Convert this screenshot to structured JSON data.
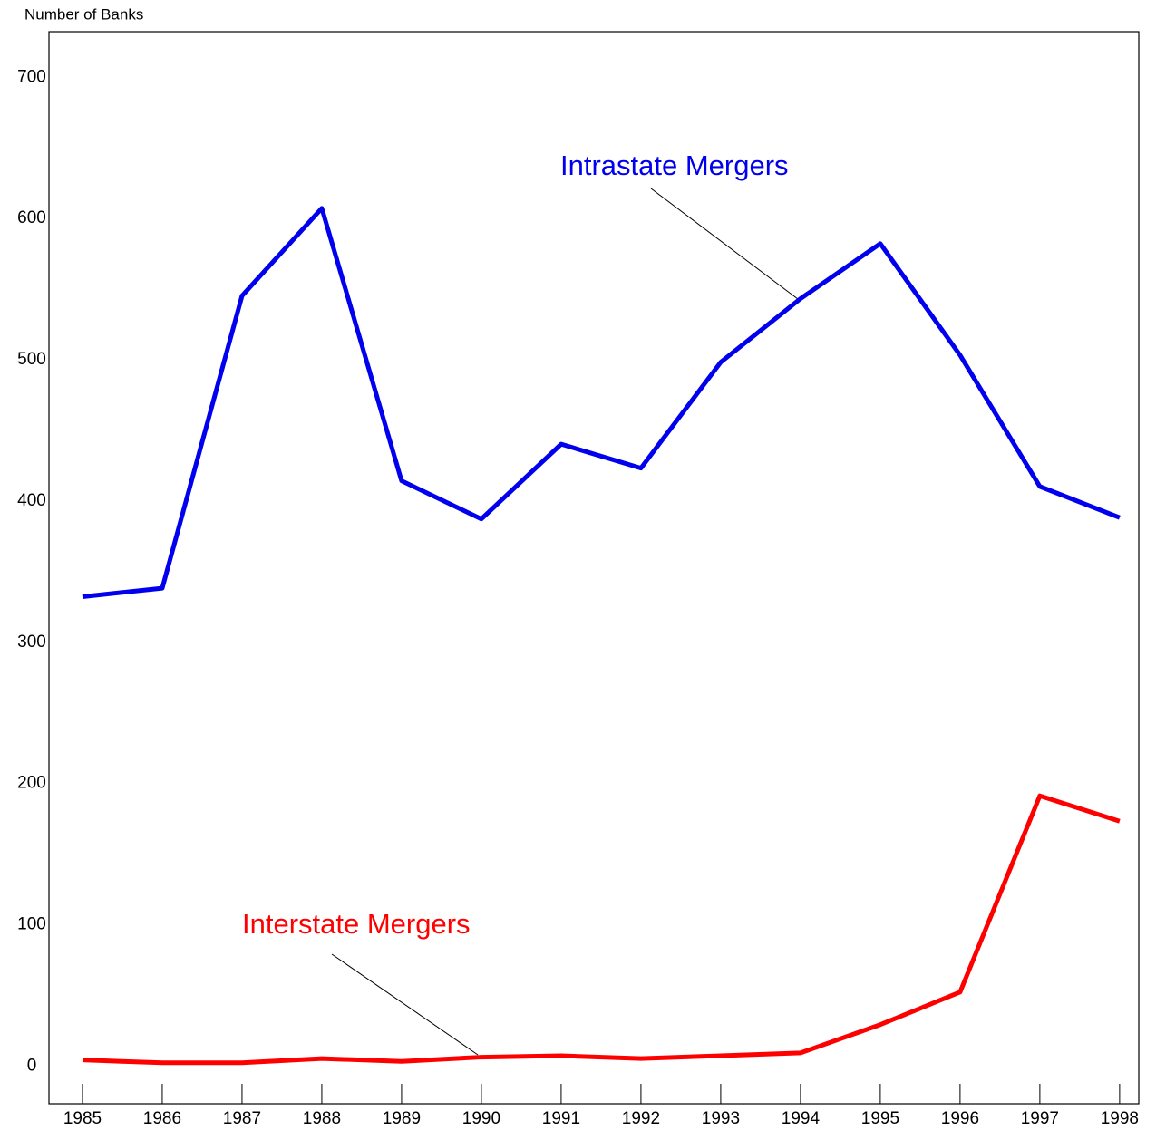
{
  "chart_data": {
    "type": "line",
    "y_label": "Number of Banks",
    "x": [
      1985,
      1986,
      1987,
      1988,
      1989,
      1990,
      1991,
      1992,
      1993,
      1994,
      1995,
      1996,
      1997,
      1998
    ],
    "series": [
      {
        "name": "Intrastate Mergers",
        "color": "#0000ee",
        "values": [
          331,
          337,
          544,
          606,
          413,
          386,
          439,
          422,
          497,
          542,
          581,
          502,
          409,
          387
        ]
      },
      {
        "name": "Interstate Mergers",
        "color": "#ff0000",
        "values": [
          3,
          1,
          1,
          4,
          2,
          5,
          6,
          4,
          6,
          8,
          28,
          51,
          190,
          172
        ]
      }
    ],
    "xlim": [
      1984.58,
      1998.24
    ],
    "xticks": [
      1985,
      1986,
      1987,
      1988,
      1989,
      1990,
      1991,
      1992,
      1993,
      1994,
      1995,
      1996,
      1997,
      1998
    ],
    "ylim": [
      -28,
      731
    ],
    "yticks": [
      0,
      100,
      200,
      300,
      400,
      500,
      600,
      700
    ],
    "grid": false
  }
}
